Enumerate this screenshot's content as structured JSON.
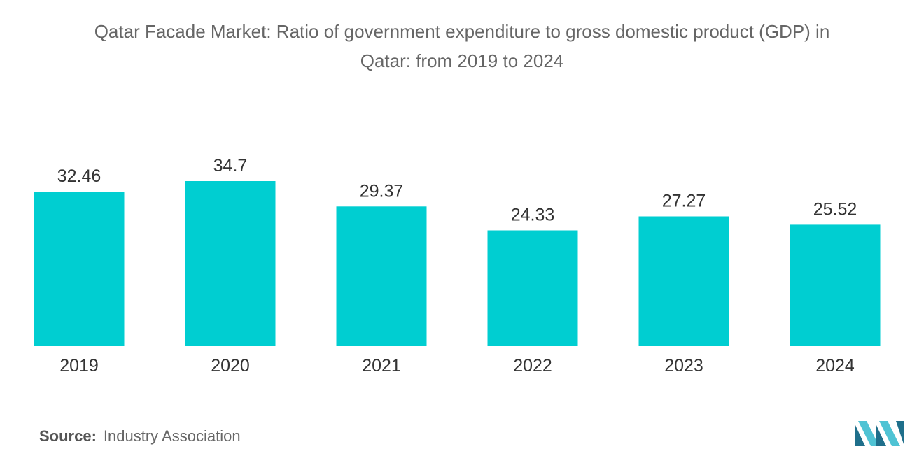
{
  "chart_data": {
    "type": "bar",
    "title_lines": [
      "Qatar Facade Market: Ratio of government expenditure to gross domestic product (GDP) in",
      "Qatar: from 2019 to 2024"
    ],
    "categories": [
      "2019",
      "2020",
      "2021",
      "2022",
      "2023",
      "2024"
    ],
    "values": [
      32.46,
      34.7,
      29.37,
      24.33,
      27.27,
      25.52
    ],
    "value_labels": [
      "32.46",
      "34.7",
      "29.37",
      "24.33",
      "27.27",
      "25.52"
    ],
    "xlabel": "",
    "ylabel": "",
    "ylim": [
      0,
      34.7
    ],
    "grid": false,
    "legend": "none",
    "bar_color": "#00CED1"
  },
  "source": {
    "label": "Source:",
    "text": "Industry Association"
  },
  "colors": {
    "text": "#666666",
    "logo_dark": "#1F6F8B",
    "logo_light": "#4FC3D4"
  }
}
